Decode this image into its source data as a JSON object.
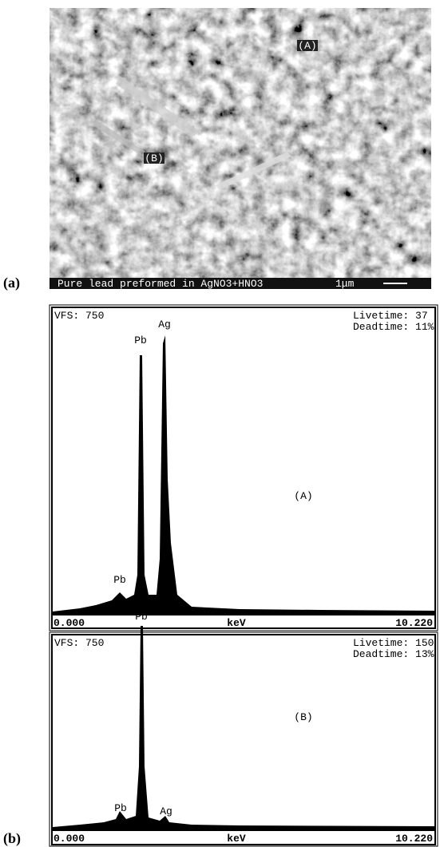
{
  "panel_a": {
    "label": "(a)",
    "caption": "Pure lead preformed in AgNO3+HNO3",
    "scale": "1μm",
    "markers": [
      "(A)",
      "(B)"
    ]
  },
  "panel_b": {
    "label": "(b)",
    "spectra": [
      {
        "vfs": "VFS: 750",
        "livetime": "Livetime: 37",
        "deadtime": "Deadtime: 11%",
        "region": "(A)",
        "peaks": [
          "Pb",
          "Ag",
          "Pb"
        ],
        "x_start": "0.000",
        "x_unit": "keV",
        "x_end": "10.220"
      },
      {
        "vfs": "VFS: 750",
        "livetime": "Livetime: 150",
        "deadtime": "Deadtime: 13%",
        "region": "(B)",
        "peaks": [
          "Pb",
          "Pb",
          "Ag"
        ],
        "x_start": "0.000",
        "x_unit": "keV",
        "x_end": "10.220"
      }
    ]
  }
}
